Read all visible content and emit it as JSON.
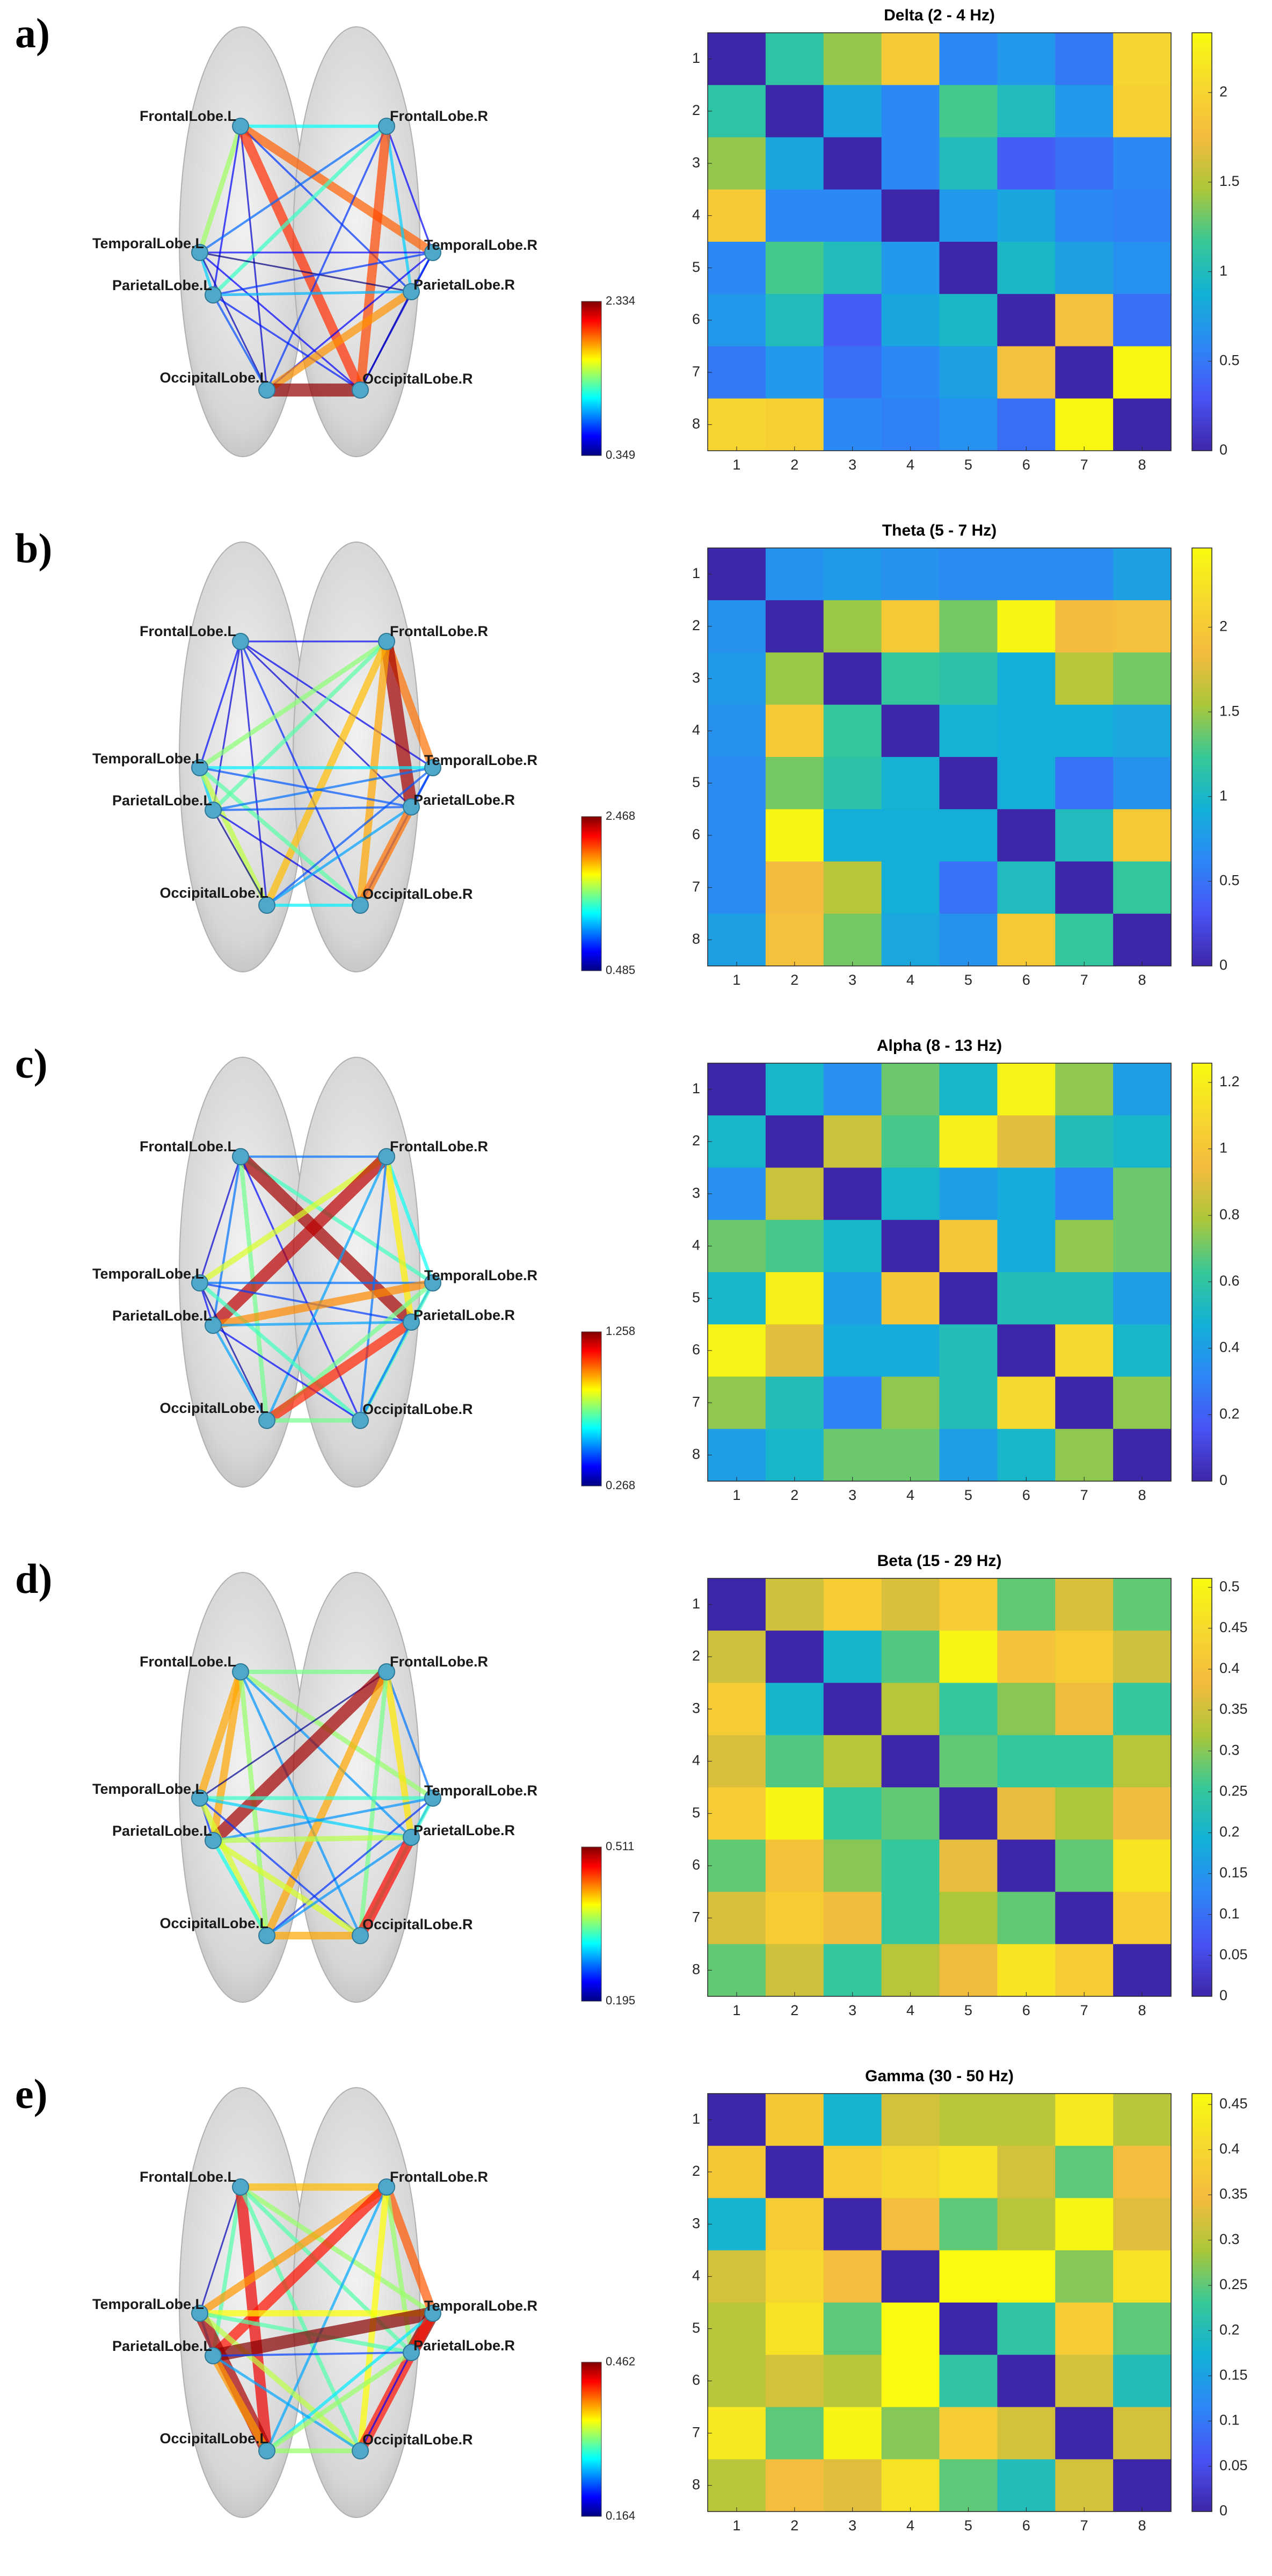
{
  "panel_labels": [
    "a)",
    "b)",
    "c)",
    "d)",
    "e)"
  ],
  "chart_data": [
    {
      "type": "network",
      "nodes": [
        "FrontalLobe.L",
        "FrontalLobe.R",
        "TemporalLobe.L",
        "TemporalLobe.R",
        "ParietalLobe.L",
        "ParietalLobe.R",
        "OccipitalLobe.L",
        "OccipitalLobe.R"
      ],
      "colormap": "jet",
      "clim": [
        0.349,
        2.334
      ],
      "colorbar_ticks": [
        0.349,
        2.334
      ]
    },
    {
      "type": "heatmap",
      "title": "Delta (2 - 4 Hz)",
      "x": [
        1,
        2,
        3,
        4,
        5,
        6,
        7,
        8
      ],
      "y": [
        1,
        2,
        3,
        4,
        5,
        6,
        7,
        8
      ],
      "colormap": "parula",
      "clim": [
        0,
        2.334
      ],
      "colorbar_ticks": [
        0,
        0.5,
        1,
        1.5,
        2
      ],
      "values": [
        [
          0,
          1.1,
          1.4,
          1.9,
          0.6,
          0.7,
          0.5,
          2.0
        ],
        [
          1.1,
          0,
          0.8,
          0.6,
          1.2,
          1.0,
          0.7,
          1.95
        ],
        [
          1.4,
          0.8,
          0,
          0.6,
          1.0,
          0.35,
          0.45,
          0.6
        ],
        [
          1.9,
          0.6,
          0.6,
          0,
          0.7,
          0.8,
          0.6,
          0.55
        ],
        [
          0.6,
          1.2,
          1.0,
          0.7,
          0,
          0.95,
          0.75,
          0.65
        ],
        [
          0.7,
          1.0,
          0.35,
          0.8,
          0.95,
          0,
          1.8,
          0.45
        ],
        [
          0.5,
          0.7,
          0.45,
          0.6,
          0.75,
          1.8,
          0,
          2.3
        ],
        [
          2.0,
          1.95,
          0.6,
          0.55,
          0.65,
          0.45,
          2.3,
          0
        ]
      ]
    },
    {
      "type": "network",
      "nodes": [
        "FrontalLobe.L",
        "FrontalLobe.R",
        "TemporalLobe.L",
        "TemporalLobe.R",
        "ParietalLobe.L",
        "ParietalLobe.R",
        "OccipitalLobe.L",
        "OccipitalLobe.R"
      ],
      "colormap": "jet",
      "clim": [
        0.485,
        2.468
      ],
      "colorbar_ticks": [
        0.485,
        2.468
      ]
    },
    {
      "type": "heatmap",
      "title": "Theta (5 - 7 Hz)",
      "x": [
        1,
        2,
        3,
        4,
        5,
        6,
        7,
        8
      ],
      "y": [
        1,
        2,
        3,
        4,
        5,
        6,
        7,
        8
      ],
      "colormap": "parula",
      "clim": [
        0,
        2.468
      ],
      "colorbar_ticks": [
        0,
        0.5,
        1,
        1.5,
        2
      ],
      "values": [
        [
          0,
          0.7,
          0.75,
          0.7,
          0.65,
          0.65,
          0.65,
          0.8
        ],
        [
          0.7,
          0,
          1.5,
          2.0,
          1.4,
          2.4,
          1.85,
          1.9
        ],
        [
          0.75,
          1.5,
          0,
          1.2,
          1.15,
          0.9,
          1.6,
          1.4
        ],
        [
          0.7,
          2.0,
          1.2,
          0,
          0.95,
          0.9,
          0.9,
          0.85
        ],
        [
          0.65,
          1.4,
          1.15,
          0.95,
          0,
          0.9,
          0.5,
          0.7
        ],
        [
          0.65,
          2.4,
          0.9,
          0.9,
          0.9,
          0,
          1.05,
          2.0
        ],
        [
          0.65,
          1.85,
          1.6,
          0.9,
          0.5,
          1.05,
          0,
          1.2
        ],
        [
          0.8,
          1.9,
          1.4,
          0.85,
          0.7,
          2.0,
          1.2,
          0
        ]
      ]
    },
    {
      "type": "network",
      "nodes": [
        "FrontalLobe.L",
        "FrontalLobe.R",
        "TemporalLobe.L",
        "TemporalLobe.R",
        "ParietalLobe.L",
        "ParietalLobe.R",
        "OccipitalLobe.L",
        "OccipitalLobe.R"
      ],
      "colormap": "jet",
      "clim": [
        0.268,
        1.258
      ],
      "colorbar_ticks": [
        0.268,
        1.258
      ]
    },
    {
      "type": "heatmap",
      "title": "Alpha (8 - 13 Hz)",
      "x": [
        1,
        2,
        3,
        4,
        5,
        6,
        7,
        8
      ],
      "y": [
        1,
        2,
        3,
        4,
        5,
        6,
        7,
        8
      ],
      "colormap": "parula",
      "clim": [
        0,
        1.258
      ],
      "colorbar_ticks": [
        0,
        0.2,
        0.4,
        0.6,
        0.8,
        1,
        1.2
      ],
      "values": [
        [
          0,
          0.5,
          0.35,
          0.7,
          0.5,
          1.22,
          0.75,
          0.4
        ],
        [
          0.5,
          0,
          0.85,
          0.65,
          1.2,
          0.9,
          0.55,
          0.5
        ],
        [
          0.35,
          0.85,
          0,
          0.5,
          0.4,
          0.45,
          0.3,
          0.7
        ],
        [
          0.7,
          0.65,
          0.5,
          0,
          1.0,
          0.45,
          0.75,
          0.7
        ],
        [
          0.5,
          1.2,
          0.4,
          1.0,
          0,
          0.55,
          0.55,
          0.4
        ],
        [
          1.22,
          0.9,
          0.45,
          0.45,
          0.55,
          0,
          1.1,
          0.5
        ],
        [
          0.75,
          0.55,
          0.3,
          0.75,
          0.55,
          1.1,
          0,
          0.75
        ],
        [
          0.4,
          0.5,
          0.7,
          0.7,
          0.4,
          0.5,
          0.75,
          0
        ]
      ]
    },
    {
      "type": "network",
      "nodes": [
        "FrontalLobe.L",
        "FrontalLobe.R",
        "TemporalLobe.L",
        "TemporalLobe.R",
        "ParietalLobe.L",
        "ParietalLobe.R",
        "OccipitalLobe.L",
        "OccipitalLobe.R"
      ],
      "colormap": "jet",
      "clim": [
        0.195,
        0.511
      ],
      "colorbar_ticks": [
        0.195,
        0.511
      ]
    },
    {
      "type": "heatmap",
      "title": "Beta (15 - 29 Hz)",
      "x": [
        1,
        2,
        3,
        4,
        5,
        6,
        7,
        8
      ],
      "y": [
        1,
        2,
        3,
        4,
        5,
        6,
        7,
        8
      ],
      "colormap": "parula",
      "clim": [
        0,
        0.511
      ],
      "colorbar_ticks": [
        0,
        0.05,
        0.1,
        0.15,
        0.2,
        0.25,
        0.3,
        0.35,
        0.4,
        0.45,
        0.5
      ],
      "values": [
        [
          0,
          0.35,
          0.42,
          0.36,
          0.42,
          0.28,
          0.36,
          0.28
        ],
        [
          0.35,
          0,
          0.2,
          0.27,
          0.5,
          0.4,
          0.42,
          0.35
        ],
        [
          0.42,
          0.2,
          0,
          0.33,
          0.25,
          0.3,
          0.38,
          0.25
        ],
        [
          0.36,
          0.27,
          0.33,
          0,
          0.28,
          0.25,
          0.25,
          0.33
        ],
        [
          0.42,
          0.5,
          0.25,
          0.28,
          0,
          0.37,
          0.32,
          0.38
        ],
        [
          0.28,
          0.4,
          0.3,
          0.25,
          0.37,
          0,
          0.28,
          0.47
        ],
        [
          0.36,
          0.42,
          0.38,
          0.25,
          0.32,
          0.28,
          0,
          0.42
        ],
        [
          0.28,
          0.35,
          0.25,
          0.33,
          0.38,
          0.47,
          0.42,
          0
        ]
      ]
    },
    {
      "type": "network",
      "nodes": [
        "FrontalLobe.L",
        "FrontalLobe.R",
        "TemporalLobe.L",
        "TemporalLobe.R",
        "ParietalLobe.L",
        "ParietalLobe.R",
        "OccipitalLobe.L",
        "OccipitalLobe.R"
      ],
      "colormap": "jet",
      "clim": [
        0.164,
        0.462
      ],
      "colorbar_ticks": [
        0.164,
        0.462
      ]
    },
    {
      "type": "heatmap",
      "title": "Gamma (30 - 50 Hz)",
      "x": [
        1,
        2,
        3,
        4,
        5,
        6,
        7,
        8
      ],
      "y": [
        1,
        2,
        3,
        4,
        5,
        6,
        7,
        8
      ],
      "colormap": "parula",
      "clim": [
        0,
        0.462
      ],
      "colorbar_ticks": [
        0,
        0.05,
        0.1,
        0.15,
        0.2,
        0.25,
        0.3,
        0.35,
        0.4,
        0.45
      ],
      "values": [
        [
          0,
          0.37,
          0.18,
          0.32,
          0.3,
          0.3,
          0.43,
          0.3
        ],
        [
          0.37,
          0,
          0.38,
          0.4,
          0.42,
          0.32,
          0.25,
          0.35
        ],
        [
          0.18,
          0.38,
          0,
          0.35,
          0.25,
          0.3,
          0.45,
          0.33
        ],
        [
          0.32,
          0.4,
          0.35,
          0,
          0.46,
          0.46,
          0.27,
          0.42
        ],
        [
          0.3,
          0.42,
          0.25,
          0.46,
          0,
          0.22,
          0.38,
          0.25
        ],
        [
          0.3,
          0.32,
          0.3,
          0.46,
          0.22,
          0,
          0.32,
          0.2
        ],
        [
          0.43,
          0.25,
          0.45,
          0.27,
          0.38,
          0.32,
          0,
          0.32
        ],
        [
          0.3,
          0.35,
          0.33,
          0.42,
          0.25,
          0.2,
          0.32,
          0
        ]
      ]
    }
  ]
}
